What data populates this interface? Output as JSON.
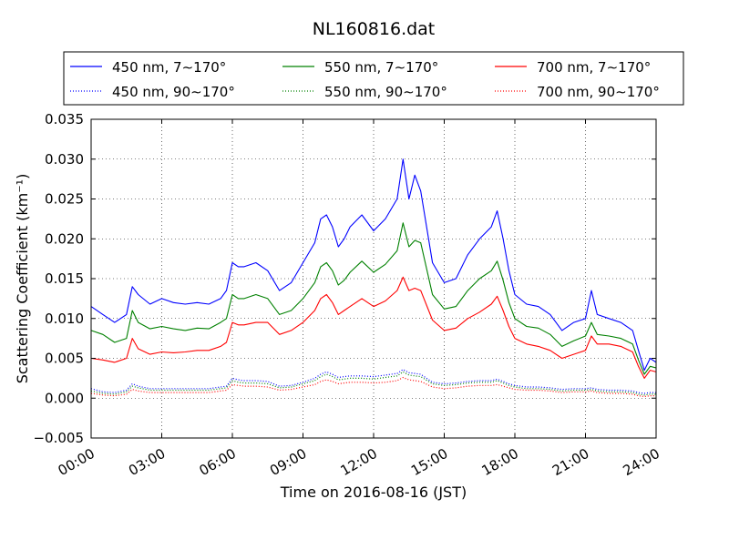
{
  "chart_data": {
    "type": "line",
    "title": "NL160816.dat",
    "xlabel": "Time on 2016-08-16 (JST)",
    "ylabel": "Scattering Coefficient (km⁻¹)",
    "x_unit": "hours (JST)",
    "xlim": [
      0,
      24
    ],
    "ylim": [
      -0.005,
      0.035
    ],
    "x_ticks": [
      0,
      3,
      6,
      9,
      12,
      15,
      18,
      21,
      24
    ],
    "x_tick_labels": [
      "00:00",
      "03:00",
      "06:00",
      "09:00",
      "12:00",
      "15:00",
      "18:00",
      "21:00",
      "24:00"
    ],
    "y_ticks": [
      -0.005,
      0.0,
      0.005,
      0.01,
      0.015,
      0.02,
      0.025,
      0.03,
      0.035
    ],
    "y_tick_labels": [
      "−0.005",
      "0.000",
      "0.005",
      "0.010",
      "0.015",
      "0.020",
      "0.025",
      "0.030",
      "0.035"
    ],
    "grid": true,
    "legend_position": "top (above plot)",
    "x": [
      0,
      0.5,
      1.0,
      1.5,
      1.75,
      2.0,
      2.5,
      3.0,
      3.5,
      4.0,
      4.5,
      5.0,
      5.5,
      5.75,
      6.0,
      6.25,
      6.5,
      7.0,
      7.5,
      8.0,
      8.5,
      9.0,
      9.5,
      9.75,
      10.0,
      10.25,
      10.5,
      10.75,
      11.0,
      11.5,
      12.0,
      12.5,
      13.0,
      13.25,
      13.5,
      13.75,
      14.0,
      14.5,
      15.0,
      15.5,
      16.0,
      16.5,
      17.0,
      17.25,
      17.5,
      17.75,
      18.0,
      18.5,
      19.0,
      19.5,
      20.0,
      20.5,
      21.0,
      21.25,
      21.5,
      22.0,
      22.5,
      23.0,
      23.25,
      23.5,
      23.75,
      24.0
    ],
    "series": [
      {
        "name": "450 nm, 7∼170°",
        "color": "#0000ff",
        "style": "solid",
        "values": [
          0.0115,
          0.0105,
          0.0095,
          0.0105,
          0.014,
          0.013,
          0.0118,
          0.0125,
          0.012,
          0.0118,
          0.012,
          0.0118,
          0.0125,
          0.0135,
          0.017,
          0.0165,
          0.0165,
          0.017,
          0.016,
          0.0135,
          0.0145,
          0.017,
          0.0195,
          0.0225,
          0.023,
          0.0215,
          0.019,
          0.02,
          0.0215,
          0.023,
          0.021,
          0.0225,
          0.025,
          0.03,
          0.025,
          0.028,
          0.026,
          0.017,
          0.0145,
          0.015,
          0.018,
          0.02,
          0.0215,
          0.0235,
          0.02,
          0.016,
          0.013,
          0.0118,
          0.0115,
          0.0105,
          0.0085,
          0.0095,
          0.01,
          0.0135,
          0.0105,
          0.01,
          0.0095,
          0.0085,
          0.006,
          0.0035,
          0.005,
          0.0045
        ]
      },
      {
        "name": "550 nm, 7∼170°",
        "color": "#008000",
        "style": "solid",
        "values": [
          0.0085,
          0.008,
          0.007,
          0.0075,
          0.011,
          0.0095,
          0.0087,
          0.009,
          0.0087,
          0.0085,
          0.0088,
          0.0087,
          0.0095,
          0.01,
          0.013,
          0.0125,
          0.0125,
          0.013,
          0.0125,
          0.0105,
          0.011,
          0.0125,
          0.0145,
          0.0165,
          0.017,
          0.016,
          0.0142,
          0.0148,
          0.0158,
          0.0172,
          0.0158,
          0.0168,
          0.0185,
          0.022,
          0.019,
          0.0198,
          0.0195,
          0.013,
          0.0112,
          0.0115,
          0.0135,
          0.015,
          0.016,
          0.0172,
          0.0148,
          0.012,
          0.01,
          0.009,
          0.0088,
          0.008,
          0.0065,
          0.0072,
          0.0078,
          0.0095,
          0.008,
          0.0078,
          0.0075,
          0.0068,
          0.0048,
          0.003,
          0.004,
          0.0038
        ]
      },
      {
        "name": "700 nm, 7∼170°",
        "color": "#ff0000",
        "style": "solid",
        "values": [
          0.005,
          0.0048,
          0.0045,
          0.005,
          0.0075,
          0.0062,
          0.0055,
          0.0058,
          0.0057,
          0.0058,
          0.006,
          0.006,
          0.0065,
          0.007,
          0.0095,
          0.0092,
          0.0092,
          0.0095,
          0.0095,
          0.008,
          0.0085,
          0.0095,
          0.011,
          0.0125,
          0.013,
          0.012,
          0.0105,
          0.011,
          0.0115,
          0.0125,
          0.0115,
          0.0122,
          0.0135,
          0.0152,
          0.0135,
          0.0138,
          0.0135,
          0.0098,
          0.0085,
          0.0088,
          0.01,
          0.0108,
          0.0118,
          0.0128,
          0.011,
          0.009,
          0.0075,
          0.0068,
          0.0065,
          0.006,
          0.005,
          0.0055,
          0.006,
          0.0078,
          0.0068,
          0.0068,
          0.0065,
          0.0058,
          0.004,
          0.0025,
          0.0035,
          0.0033
        ]
      },
      {
        "name": "450 nm, 90∼170°",
        "color": "#0000ff",
        "style": "dotted",
        "values": [
          0.0012,
          0.0008,
          0.0007,
          0.001,
          0.0018,
          0.0015,
          0.0012,
          0.0012,
          0.0012,
          0.0012,
          0.0012,
          0.0012,
          0.0014,
          0.0015,
          0.0025,
          0.0023,
          0.0022,
          0.0022,
          0.0021,
          0.0015,
          0.0016,
          0.002,
          0.0025,
          0.003,
          0.0033,
          0.003,
          0.0026,
          0.0027,
          0.0028,
          0.0028,
          0.0027,
          0.0029,
          0.0031,
          0.0036,
          0.0032,
          0.0031,
          0.003,
          0.002,
          0.0018,
          0.0019,
          0.0021,
          0.0022,
          0.0022,
          0.0024,
          0.0021,
          0.0018,
          0.0016,
          0.0014,
          0.0014,
          0.0013,
          0.0011,
          0.0012,
          0.0012,
          0.0013,
          0.0011,
          0.001,
          0.001,
          0.0009,
          0.0007,
          0.0006,
          0.0007,
          0.0007
        ]
      },
      {
        "name": "550 nm, 90∼170°",
        "color": "#008000",
        "style": "dotted",
        "values": [
          0.0009,
          0.0006,
          0.0005,
          0.0008,
          0.0015,
          0.0013,
          0.001,
          0.001,
          0.001,
          0.001,
          0.001,
          0.001,
          0.0012,
          0.0013,
          0.0022,
          0.002,
          0.0019,
          0.0019,
          0.0018,
          0.0013,
          0.0014,
          0.0018,
          0.0022,
          0.0027,
          0.003,
          0.0027,
          0.0023,
          0.0024,
          0.0025,
          0.0025,
          0.0024,
          0.0026,
          0.0028,
          0.0033,
          0.0029,
          0.0028,
          0.0027,
          0.0018,
          0.0016,
          0.0017,
          0.0019,
          0.002,
          0.002,
          0.0022,
          0.0019,
          0.0016,
          0.0014,
          0.0012,
          0.0012,
          0.0011,
          0.0009,
          0.001,
          0.001,
          0.0011,
          0.0009,
          0.0008,
          0.0008,
          0.0007,
          0.0005,
          0.0004,
          0.0005,
          0.0005
        ]
      },
      {
        "name": "700 nm, 90∼170°",
        "color": "#ff0000",
        "style": "dotted",
        "values": [
          0.0006,
          0.0004,
          0.0003,
          0.0005,
          0.0011,
          0.0009,
          0.0007,
          0.0007,
          0.0007,
          0.0007,
          0.0007,
          0.0007,
          0.0009,
          0.001,
          0.0017,
          0.0016,
          0.0015,
          0.0015,
          0.0014,
          0.001,
          0.0011,
          0.0014,
          0.0017,
          0.0021,
          0.0023,
          0.0021,
          0.0018,
          0.0019,
          0.002,
          0.002,
          0.0019,
          0.002,
          0.0022,
          0.0026,
          0.0023,
          0.0022,
          0.0021,
          0.0014,
          0.0012,
          0.0013,
          0.0015,
          0.0016,
          0.0016,
          0.0017,
          0.0015,
          0.0013,
          0.0011,
          0.001,
          0.001,
          0.0009,
          0.0007,
          0.0008,
          0.0008,
          0.0009,
          0.0007,
          0.0006,
          0.0006,
          0.0005,
          0.0003,
          0.0002,
          0.0003,
          0.0003
        ]
      }
    ]
  }
}
